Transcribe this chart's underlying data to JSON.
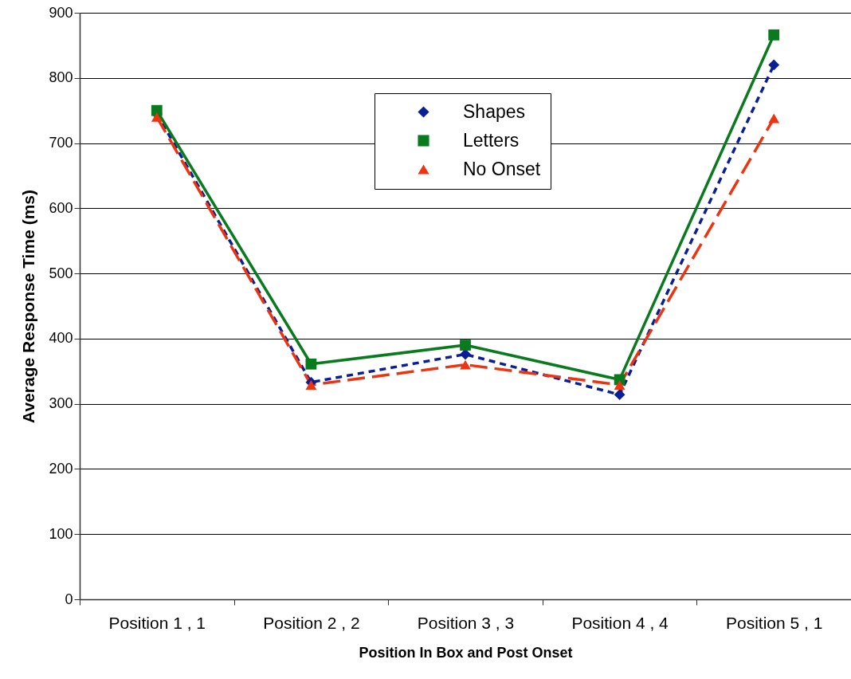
{
  "chart_data": {
    "type": "line",
    "xlabel": "Position In Box and Post Onset",
    "ylabel": "Average Response Time (ms)",
    "categories": [
      "Position 1 , 1",
      "Position 2 , 2",
      "Position 3 , 3",
      "Position 4 , 4",
      "Position 5 , 1"
    ],
    "series": [
      {
        "name": "Shapes",
        "color": "#0a1e96",
        "marker": "diamond",
        "line_style": "dotted",
        "values": [
          745,
          333,
          376,
          314,
          820
        ]
      },
      {
        "name": "Letters",
        "color": "#0a7a1e",
        "marker": "square",
        "line_style": "solid",
        "values": [
          750,
          361,
          390,
          337,
          866
        ]
      },
      {
        "name": "No Onset",
        "color": "#ee3311",
        "marker": "triangle",
        "line_style": "dashed",
        "values": [
          740,
          329,
          360,
          329,
          738
        ]
      }
    ],
    "ylim": [
      0,
      900
    ],
    "yticks": [
      0,
      100,
      200,
      300,
      400,
      500,
      600,
      700,
      800,
      900
    ],
    "grid": "y",
    "legend": "top"
  }
}
